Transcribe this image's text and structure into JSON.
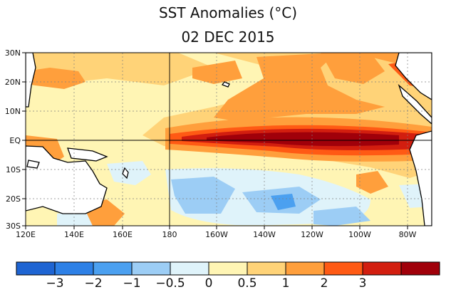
{
  "title": "SST Anomalies (°C)",
  "date": "02 DEC 2015",
  "lat_labels": [
    "30N",
    "20N",
    "10N",
    "EQ",
    "10S",
    "20S",
    "30S"
  ],
  "lon_labels": [
    "120E",
    "140E",
    "160E",
    "180",
    "160W",
    "140W",
    "120W",
    "100W",
    "80W"
  ],
  "colorbar": {
    "colors": [
      "#1e64d2",
      "#2d80e6",
      "#4ba0f0",
      "#9ccdf5",
      "#dff3fa",
      "#fff5b4",
      "#ffd378",
      "#ff9f3c",
      "#ff5a14",
      "#d21e0f",
      "#a0000a"
    ],
    "labels": [
      "−3",
      "−2",
      "−1",
      "−0.5",
      "0",
      "0.5",
      "1",
      "2",
      "3"
    ]
  }
}
